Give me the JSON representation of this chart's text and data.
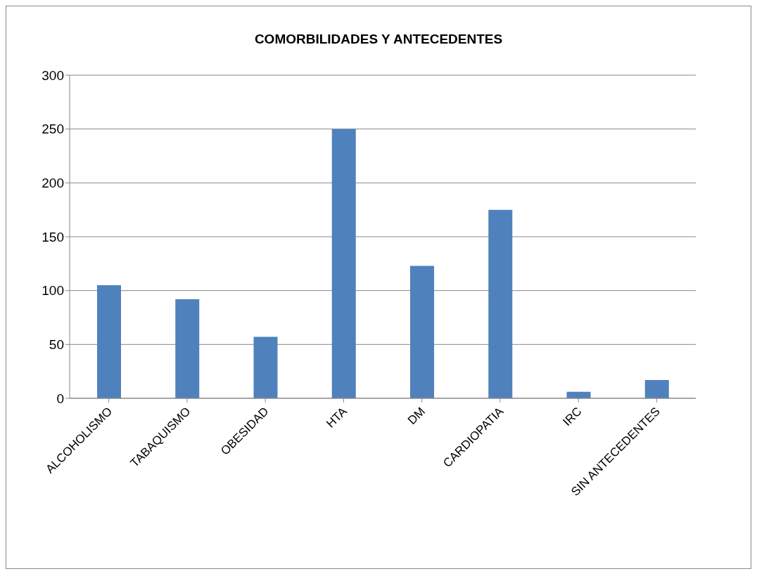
{
  "chart_data": {
    "type": "bar",
    "title": "COMORBILIDADES Y ANTECEDENTES",
    "categories": [
      "ALCOHOLISMO",
      "TABAQUISMO",
      "OBESIDAD",
      "HTA",
      "DM",
      "CARDIOPATIA",
      "IRC",
      "SIN ANTECEDENTES"
    ],
    "values": [
      105,
      92,
      57,
      250,
      123,
      175,
      6,
      17
    ],
    "color": "#4f81bd",
    "ylim": [
      0,
      300
    ],
    "yticks": [
      0,
      50,
      100,
      150,
      200,
      250,
      300
    ],
    "grid": "y"
  }
}
